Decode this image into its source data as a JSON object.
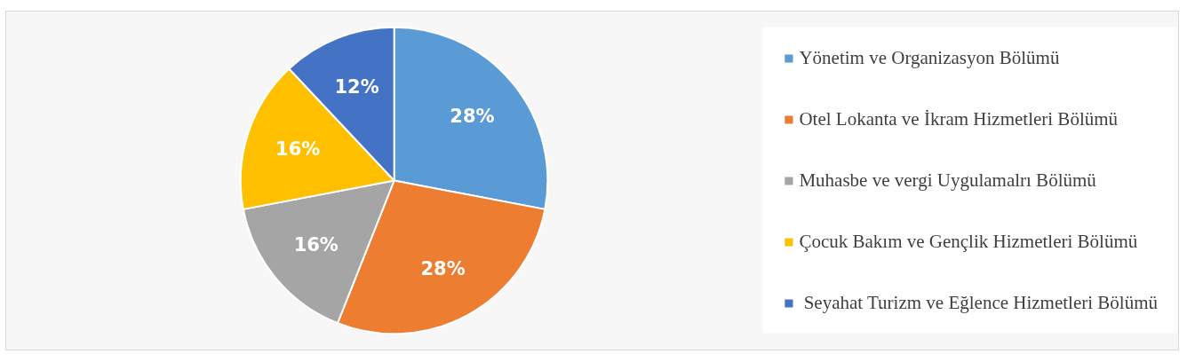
{
  "chart_data": {
    "type": "pie",
    "categories": [
      "Yönetim ve Organizasyon Bölümü",
      "Otel Lokanta ve İkram Hizmetleri Bölümü",
      "Muhasbe ve vergi Uygulamalrı Bölümü",
      "Çocuk Bakım ve Gençlik Hizmetleri Bölümü",
      " Seyahat Turizm ve Eğlence Hizmetleri Bölümü"
    ],
    "values": [
      28,
      28,
      16,
      16,
      12
    ],
    "colors": [
      "#5b9bd5",
      "#ed7d31",
      "#a5a5a5",
      "#ffc000",
      "#4472c4"
    ],
    "value_labels": [
      "28%",
      "28%",
      "16%",
      "16%",
      "12%"
    ],
    "legend": "right"
  }
}
